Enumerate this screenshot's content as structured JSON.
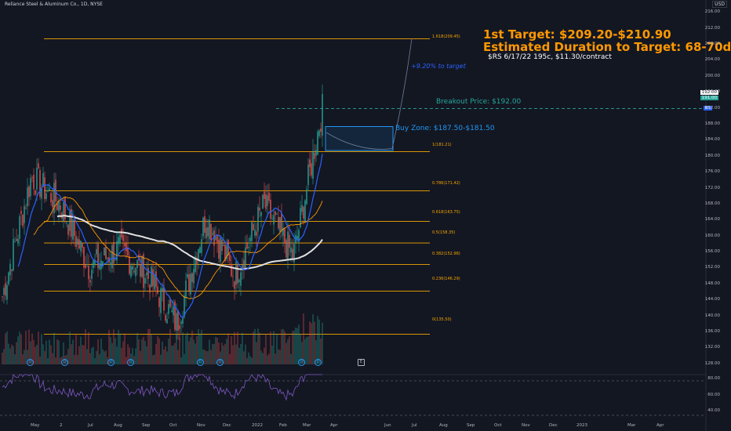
{
  "chart_title": "Reliance Steel & Aluminum Co., 1D, NYSE",
  "currency": "USD",
  "annotations": {
    "target": "1st Target: $209.20-$210.90",
    "duration": "Estimated Duration to Target: 68-70d",
    "option": "$RS 6/17/22 195c, $11.30/contract",
    "pct": "+9.20% to target",
    "breakout": "Breakout Price: $192.00",
    "buyzone": "Buy Zone: $187.50-$181.50"
  },
  "price_tags": {
    "last": "192.00",
    "prev": "191.00",
    "symbol": "RS"
  },
  "fib_labels": [
    "1.618(209.45)",
    "1(181.21)",
    "0.786(171.42)",
    "0.618(163.75)",
    "0.5(158.35)",
    "0.382(152.96)",
    "0.236(146.29)",
    "0(135.50)"
  ],
  "y_ticks": [
    "216.00",
    "212.00",
    "208.00",
    "204.00",
    "200.00",
    "196.00",
    "192.00",
    "188.00",
    "184.00",
    "180.00",
    "176.00",
    "172.00",
    "168.00",
    "164.00",
    "160.00",
    "156.00",
    "152.00",
    "148.00",
    "144.00",
    "140.00",
    "136.00",
    "132.00",
    "128.00"
  ],
  "x_ticks": [
    "May",
    "2",
    "Jul",
    "Aug",
    "Sep",
    "Oct",
    "Nov",
    "Dec",
    "2022",
    "Feb",
    "Mar",
    "Apr",
    "Jun",
    "Jul",
    "Aug",
    "Sep",
    "Oct",
    "Nov",
    "Dec",
    "2023",
    "Mar",
    "Apr"
  ],
  "rsi_ticks": [
    "80.00",
    "60.00",
    "40.00"
  ],
  "event_marks": [
    "D",
    "D",
    "D",
    "D",
    "D",
    "D",
    "D",
    "D",
    "E"
  ],
  "colors": {
    "bg": "#131722",
    "up": "#26a69a",
    "down": "#ef5350",
    "fib": "#f7a600",
    "ma_white": "#e0e0e0",
    "ma_orange": "#ff9800",
    "ma_blue": "#2962ff",
    "rsi": "#7e57c2"
  },
  "chart_data": {
    "type": "candlestick",
    "ylim": [
      126,
      218
    ],
    "dates": [
      "2021-04",
      "2021-05",
      "2021-06",
      "2021-07",
      "2021-08",
      "2021-09",
      "2021-10",
      "2021-11",
      "2021-12",
      "2022-01",
      "2022-02",
      "2022-03"
    ],
    "closes": [
      145,
      175,
      168,
      152,
      157,
      150,
      138,
      165,
      150,
      168,
      155,
      192
    ],
    "fib_levels": [
      209.45,
      181.21,
      171.42,
      163.75,
      158.35,
      152.96,
      146.29,
      135.5
    ],
    "breakout_price": 192.0,
    "buy_zone": [
      181.5,
      187.5
    ],
    "target": [
      209.2,
      210.9
    ]
  }
}
